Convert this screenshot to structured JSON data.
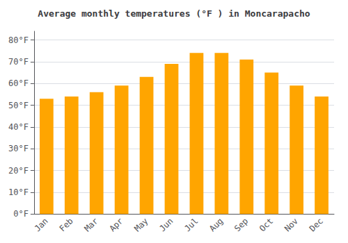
{
  "chart_data": {
    "type": "bar",
    "title": "Average monthly temperatures (°F ) in Moncarapacho",
    "categories": [
      "Jan",
      "Feb",
      "Mar",
      "Apr",
      "May",
      "Jun",
      "Jul",
      "Aug",
      "Sep",
      "Oct",
      "Nov",
      "Dec"
    ],
    "values": [
      53,
      54,
      56,
      59,
      63,
      69,
      74,
      74,
      71,
      65,
      59,
      54
    ],
    "color": "#FFA500",
    "ylim": [
      0,
      84
    ],
    "yticks": [
      {
        "value": 0,
        "label": "0°F"
      },
      {
        "value": 10,
        "label": "10°F"
      },
      {
        "value": 20,
        "label": "20°F"
      },
      {
        "value": 30,
        "label": "30°F"
      },
      {
        "value": 40,
        "label": "40°F"
      },
      {
        "value": 50,
        "label": "50°F"
      },
      {
        "value": 60,
        "label": "60°F"
      },
      {
        "value": 70,
        "label": "70°F"
      },
      {
        "value": 80,
        "label": "80°F"
      }
    ],
    "grid": true
  }
}
